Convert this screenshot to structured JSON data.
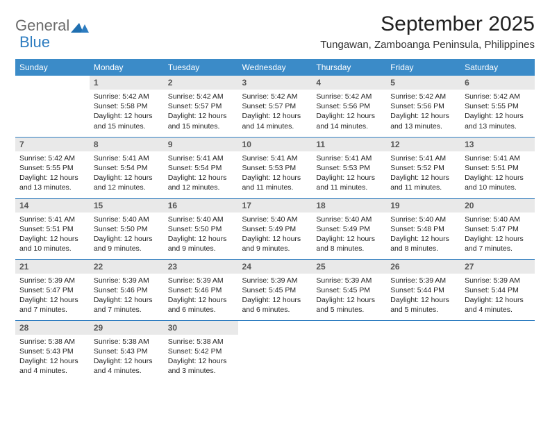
{
  "brand": {
    "word1": "General",
    "word2": "Blue",
    "color_general": "#6b6b6b",
    "color_blue": "#2d7cc0",
    "icon_fill": "#1f6fb0"
  },
  "title": "September 2025",
  "location": "Tungawan, Zamboanga Peninsula, Philippines",
  "header_bg": "#3b8bc8",
  "header_fg": "#ffffff",
  "rule_color": "#2d7cc0",
  "daynum_bg": "#e9e9e9",
  "daynum_fg": "#555555",
  "body_text_color": "#222222",
  "background_color": "#ffffff",
  "fonts": {
    "title_pt": 30,
    "location_pt": 15,
    "header_pt": 12,
    "daynum_pt": 12,
    "body_pt": 10.5
  },
  "weekdays": [
    "Sunday",
    "Monday",
    "Tuesday",
    "Wednesday",
    "Thursday",
    "Friday",
    "Saturday"
  ],
  "weeks": [
    [
      {
        "empty": true
      },
      {
        "n": "1",
        "sunrise": "Sunrise: 5:42 AM",
        "sunset": "Sunset: 5:58 PM",
        "daylight": "Daylight: 12 hours and 15 minutes."
      },
      {
        "n": "2",
        "sunrise": "Sunrise: 5:42 AM",
        "sunset": "Sunset: 5:57 PM",
        "daylight": "Daylight: 12 hours and 15 minutes."
      },
      {
        "n": "3",
        "sunrise": "Sunrise: 5:42 AM",
        "sunset": "Sunset: 5:57 PM",
        "daylight": "Daylight: 12 hours and 14 minutes."
      },
      {
        "n": "4",
        "sunrise": "Sunrise: 5:42 AM",
        "sunset": "Sunset: 5:56 PM",
        "daylight": "Daylight: 12 hours and 14 minutes."
      },
      {
        "n": "5",
        "sunrise": "Sunrise: 5:42 AM",
        "sunset": "Sunset: 5:56 PM",
        "daylight": "Daylight: 12 hours and 13 minutes."
      },
      {
        "n": "6",
        "sunrise": "Sunrise: 5:42 AM",
        "sunset": "Sunset: 5:55 PM",
        "daylight": "Daylight: 12 hours and 13 minutes."
      }
    ],
    [
      {
        "n": "7",
        "sunrise": "Sunrise: 5:42 AM",
        "sunset": "Sunset: 5:55 PM",
        "daylight": "Daylight: 12 hours and 13 minutes."
      },
      {
        "n": "8",
        "sunrise": "Sunrise: 5:41 AM",
        "sunset": "Sunset: 5:54 PM",
        "daylight": "Daylight: 12 hours and 12 minutes."
      },
      {
        "n": "9",
        "sunrise": "Sunrise: 5:41 AM",
        "sunset": "Sunset: 5:54 PM",
        "daylight": "Daylight: 12 hours and 12 minutes."
      },
      {
        "n": "10",
        "sunrise": "Sunrise: 5:41 AM",
        "sunset": "Sunset: 5:53 PM",
        "daylight": "Daylight: 12 hours and 11 minutes."
      },
      {
        "n": "11",
        "sunrise": "Sunrise: 5:41 AM",
        "sunset": "Sunset: 5:53 PM",
        "daylight": "Daylight: 12 hours and 11 minutes."
      },
      {
        "n": "12",
        "sunrise": "Sunrise: 5:41 AM",
        "sunset": "Sunset: 5:52 PM",
        "daylight": "Daylight: 12 hours and 11 minutes."
      },
      {
        "n": "13",
        "sunrise": "Sunrise: 5:41 AM",
        "sunset": "Sunset: 5:51 PM",
        "daylight": "Daylight: 12 hours and 10 minutes."
      }
    ],
    [
      {
        "n": "14",
        "sunrise": "Sunrise: 5:41 AM",
        "sunset": "Sunset: 5:51 PM",
        "daylight": "Daylight: 12 hours and 10 minutes."
      },
      {
        "n": "15",
        "sunrise": "Sunrise: 5:40 AM",
        "sunset": "Sunset: 5:50 PM",
        "daylight": "Daylight: 12 hours and 9 minutes."
      },
      {
        "n": "16",
        "sunrise": "Sunrise: 5:40 AM",
        "sunset": "Sunset: 5:50 PM",
        "daylight": "Daylight: 12 hours and 9 minutes."
      },
      {
        "n": "17",
        "sunrise": "Sunrise: 5:40 AM",
        "sunset": "Sunset: 5:49 PM",
        "daylight": "Daylight: 12 hours and 9 minutes."
      },
      {
        "n": "18",
        "sunrise": "Sunrise: 5:40 AM",
        "sunset": "Sunset: 5:49 PM",
        "daylight": "Daylight: 12 hours and 8 minutes."
      },
      {
        "n": "19",
        "sunrise": "Sunrise: 5:40 AM",
        "sunset": "Sunset: 5:48 PM",
        "daylight": "Daylight: 12 hours and 8 minutes."
      },
      {
        "n": "20",
        "sunrise": "Sunrise: 5:40 AM",
        "sunset": "Sunset: 5:47 PM",
        "daylight": "Daylight: 12 hours and 7 minutes."
      }
    ],
    [
      {
        "n": "21",
        "sunrise": "Sunrise: 5:39 AM",
        "sunset": "Sunset: 5:47 PM",
        "daylight": "Daylight: 12 hours and 7 minutes."
      },
      {
        "n": "22",
        "sunrise": "Sunrise: 5:39 AM",
        "sunset": "Sunset: 5:46 PM",
        "daylight": "Daylight: 12 hours and 7 minutes."
      },
      {
        "n": "23",
        "sunrise": "Sunrise: 5:39 AM",
        "sunset": "Sunset: 5:46 PM",
        "daylight": "Daylight: 12 hours and 6 minutes."
      },
      {
        "n": "24",
        "sunrise": "Sunrise: 5:39 AM",
        "sunset": "Sunset: 5:45 PM",
        "daylight": "Daylight: 12 hours and 6 minutes."
      },
      {
        "n": "25",
        "sunrise": "Sunrise: 5:39 AM",
        "sunset": "Sunset: 5:45 PM",
        "daylight": "Daylight: 12 hours and 5 minutes."
      },
      {
        "n": "26",
        "sunrise": "Sunrise: 5:39 AM",
        "sunset": "Sunset: 5:44 PM",
        "daylight": "Daylight: 12 hours and 5 minutes."
      },
      {
        "n": "27",
        "sunrise": "Sunrise: 5:39 AM",
        "sunset": "Sunset: 5:44 PM",
        "daylight": "Daylight: 12 hours and 4 minutes."
      }
    ],
    [
      {
        "n": "28",
        "sunrise": "Sunrise: 5:38 AM",
        "sunset": "Sunset: 5:43 PM",
        "daylight": "Daylight: 12 hours and 4 minutes."
      },
      {
        "n": "29",
        "sunrise": "Sunrise: 5:38 AM",
        "sunset": "Sunset: 5:43 PM",
        "daylight": "Daylight: 12 hours and 4 minutes."
      },
      {
        "n": "30",
        "sunrise": "Sunrise: 5:38 AM",
        "sunset": "Sunset: 5:42 PM",
        "daylight": "Daylight: 12 hours and 3 minutes."
      },
      {
        "empty": true
      },
      {
        "empty": true
      },
      {
        "empty": true
      },
      {
        "empty": true
      }
    ]
  ]
}
